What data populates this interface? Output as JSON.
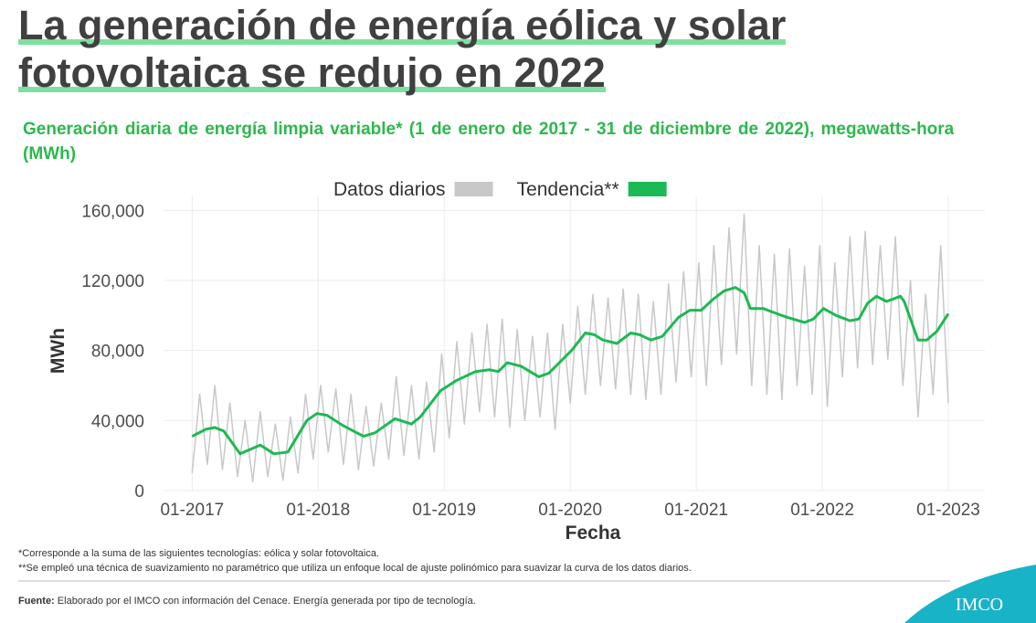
{
  "chart_data": {
    "type": "line",
    "title": "La generación de energía eólica y solar fotovoltaica se redujo en 2022",
    "subtitle": "Generación diaria de energía limpia variable* (1 de enero de 2017 - 31 de diciembre de 2022), megawatts-hora (MWh)",
    "x_label": "Fecha",
    "y_label": "MWh",
    "xlim": [
      2016.78,
      2023.29
    ],
    "ylim": [
      0,
      168000
    ],
    "xticks": [
      {
        "value": 2017,
        "label": "01-2017"
      },
      {
        "value": 2018,
        "label": "01-2018"
      },
      {
        "value": 2019,
        "label": "01-2019"
      },
      {
        "value": 2020,
        "label": "01-2020"
      },
      {
        "value": 2021,
        "label": "01-2021"
      },
      {
        "value": 2022,
        "label": "01-2022"
      },
      {
        "value": 2023,
        "label": "01-2023"
      }
    ],
    "yticks": [
      0,
      {
        "value": 40000,
        "label": "40,000"
      },
      {
        "value": 80000,
        "label": "80,000"
      },
      {
        "value": 120000,
        "label": "120,000"
      },
      {
        "value": 160000,
        "label": "160,000"
      }
    ],
    "grid": true,
    "legend": "top",
    "series": [
      {
        "name": "Datos diarios",
        "color": "#c8c8c8",
        "x": [
          2017.0,
          2017.06,
          2017.12,
          2017.18,
          2017.24,
          2017.3,
          2017.36,
          2017.42,
          2017.48,
          2017.54,
          2017.6,
          2017.66,
          2017.72,
          2017.78,
          2017.84,
          2017.9,
          2017.96,
          2018.02,
          2018.08,
          2018.14,
          2018.2,
          2018.26,
          2018.32,
          2018.38,
          2018.44,
          2018.5,
          2018.56,
          2018.62,
          2018.68,
          2018.74,
          2018.8,
          2018.86,
          2018.92,
          2018.98,
          2019.04,
          2019.1,
          2019.16,
          2019.22,
          2019.28,
          2019.34,
          2019.4,
          2019.46,
          2019.52,
          2019.58,
          2019.64,
          2019.7,
          2019.76,
          2019.82,
          2019.88,
          2019.94,
          2020.0,
          2020.06,
          2020.12,
          2020.18,
          2020.24,
          2020.3,
          2020.36,
          2020.42,
          2020.48,
          2020.54,
          2020.6,
          2020.66,
          2020.72,
          2020.78,
          2020.84,
          2020.9,
          2020.96,
          2021.02,
          2021.08,
          2021.14,
          2021.2,
          2021.26,
          2021.32,
          2021.38,
          2021.44,
          2021.5,
          2021.56,
          2021.62,
          2021.68,
          2021.74,
          2021.8,
          2021.86,
          2021.92,
          2021.98,
          2022.04,
          2022.1,
          2022.16,
          2022.22,
          2022.28,
          2022.34,
          2022.4,
          2022.46,
          2022.52,
          2022.58,
          2022.64,
          2022.7,
          2022.76,
          2022.82,
          2022.88,
          2022.94,
          2023.0
        ],
        "values": [
          10000,
          55000,
          15000,
          60000,
          12000,
          50000,
          8000,
          40000,
          5000,
          45000,
          8000,
          38000,
          6000,
          42000,
          10000,
          55000,
          18000,
          60000,
          22000,
          58000,
          15000,
          55000,
          12000,
          48000,
          14000,
          50000,
          18000,
          65000,
          20000,
          60000,
          18000,
          62000,
          22000,
          78000,
          30000,
          85000,
          38000,
          90000,
          45000,
          95000,
          42000,
          98000,
          36000,
          92000,
          40000,
          88000,
          42000,
          90000,
          35000,
          95000,
          50000,
          105000,
          55000,
          112000,
          60000,
          110000,
          58000,
          115000,
          55000,
          112000,
          52000,
          108000,
          55000,
          118000,
          62000,
          125000,
          65000,
          130000,
          60000,
          140000,
          72000,
          150000,
          78000,
          158000,
          60000,
          140000,
          55000,
          135000,
          52000,
          138000,
          60000,
          128000,
          55000,
          140000,
          48000,
          130000,
          65000,
          145000,
          70000,
          148000,
          72000,
          140000,
          75000,
          145000,
          60000,
          120000,
          42000,
          112000,
          55000,
          140000,
          50000
        ]
      },
      {
        "name": "Tendencia**",
        "color": "#1db954",
        "x": [
          2017.0,
          2017.11,
          2017.18,
          2017.25,
          2017.38,
          2017.54,
          2017.65,
          2017.76,
          2017.91,
          2017.99,
          2018.07,
          2018.2,
          2018.36,
          2018.45,
          2018.61,
          2018.74,
          2018.81,
          2018.97,
          2019.1,
          2019.25,
          2019.36,
          2019.43,
          2019.5,
          2019.61,
          2019.75,
          2019.83,
          2020.01,
          2020.12,
          2020.19,
          2020.26,
          2020.37,
          2020.48,
          2020.55,
          2020.64,
          2020.73,
          2020.86,
          2020.95,
          2021.04,
          2021.13,
          2021.22,
          2021.31,
          2021.38,
          2021.43,
          2021.53,
          2021.64,
          2021.72,
          2021.86,
          2021.93,
          2022.01,
          2022.11,
          2022.22,
          2022.29,
          2022.36,
          2022.43,
          2022.51,
          2022.62,
          2022.65,
          2022.71,
          2022.76,
          2022.83,
          2022.91,
          2023.0
        ],
        "values": [
          31000,
          35000,
          36000,
          34000,
          21000,
          26000,
          21000,
          22000,
          40000,
          44000,
          43000,
          37000,
          31000,
          33000,
          41000,
          38000,
          42000,
          57000,
          63000,
          68000,
          69000,
          68000,
          73000,
          71000,
          65000,
          67000,
          80000,
          90000,
          89000,
          86000,
          84000,
          90000,
          89000,
          86000,
          88000,
          99000,
          103000,
          103000,
          109000,
          114000,
          116000,
          113000,
          104000,
          104000,
          101000,
          99000,
          96000,
          98000,
          104000,
          100000,
          97000,
          98000,
          107000,
          111000,
          108000,
          111000,
          108000,
          96000,
          86000,
          86000,
          91000,
          101000
        ]
      }
    ]
  },
  "notes": [
    "*Corresponde a la suma de las siguientes tecnologías: eólica y solar fotovoltaica.",
    "**Se empleó una técnica de suavizamiento no paramétrico que utiliza un enfoque local de ajuste polinómico para suavizar la curva de los datos diarios."
  ],
  "source": {
    "label": "Fuente:",
    "text": "Elaborado por el IMCO con información del Cenace. Energía generada por tipo de tecnología."
  },
  "logo": "IMCO"
}
